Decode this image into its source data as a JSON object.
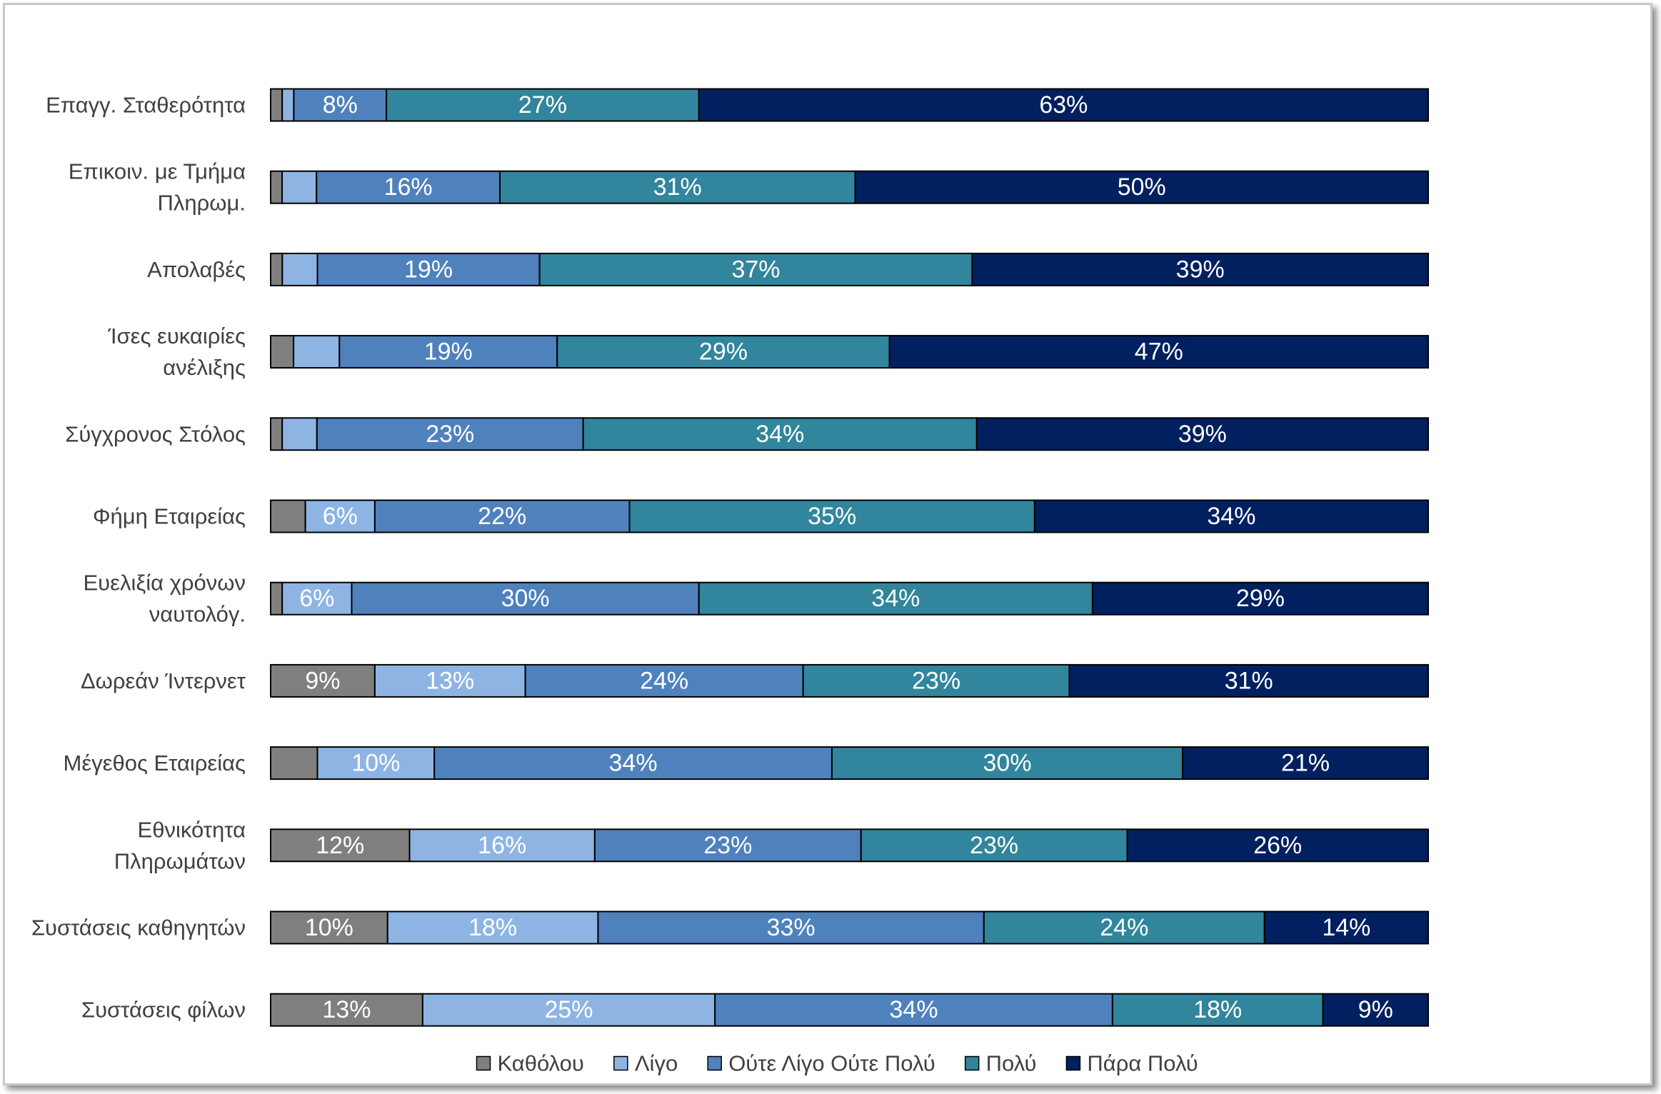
{
  "chart_data": {
    "type": "bar",
    "orientation": "horizontal",
    "stacked": "100%",
    "title": "",
    "xlabel": "",
    "ylabel": "",
    "xlim": [
      0,
      100
    ],
    "grid": false,
    "legend_position": "bottom",
    "categories": [
      "Επαγγ. Σταθερότητα",
      "Επικοιν. με Τμήμα Πληρωμ.",
      "Απολαβές",
      "Ίσες ευκαιρίες ανέλιξης",
      "Σύγχρονος Στόλος",
      "Φήμη Εταιρείας",
      "Ευελιξία χρόνων ναυτολόγ.",
      "Δωρεάν Ίντερνετ",
      "Μέγεθος Εταιρείας",
      "Εθνικότητα Πληρωμάτων",
      "Συστάσεις καθηγητών",
      "Συστάσεις φίλων"
    ],
    "category_lines": [
      [
        "Επαγγ. Σταθερότητα"
      ],
      [
        "Επικοιν. με Τμήμα",
        "Πληρωμ."
      ],
      [
        "Απολαβές"
      ],
      [
        "Ίσες ευκαιρίες",
        "ανέλιξης"
      ],
      [
        "Σύγχρονος Στόλος"
      ],
      [
        "Φήμη Εταιρείας"
      ],
      [
        "Ευελιξία χρόνων",
        "ναυτολόγ."
      ],
      [
        "Δωρεάν Ίντερνετ"
      ],
      [
        "Μέγεθος Εταιρείας"
      ],
      [
        "Εθνικότητα ",
        "Πληρωμάτων"
      ],
      [
        "Συστάσεις καθηγητών"
      ],
      [
        "Συστάσεις φίλων"
      ]
    ],
    "series": [
      {
        "name": "Καθόλου",
        "color": "#7f7f7f",
        "values": [
          1,
          1,
          1,
          2,
          1,
          3,
          1,
          9,
          4,
          12,
          10,
          13
        ]
      },
      {
        "name": "Λίγο",
        "color": "#8eb4e3",
        "values": [
          1,
          3,
          3,
          4,
          3,
          6,
          6,
          13,
          10,
          16,
          18,
          25
        ]
      },
      {
        "name": "Ούτε Λίγο Ούτε Πολύ",
        "color": "#4f81bd",
        "values": [
          8,
          16,
          19,
          19,
          23,
          22,
          30,
          24,
          34,
          23,
          33,
          34
        ]
      },
      {
        "name": "Πολύ",
        "color": "#31859c",
        "values": [
          27,
          31,
          37,
          29,
          34,
          35,
          34,
          23,
          30,
          23,
          24,
          18
        ]
      },
      {
        "name": "Πάρα Πολύ",
        "color": "#002060",
        "values": [
          63,
          50,
          39,
          47,
          39,
          34,
          29,
          31,
          21,
          26,
          14,
          9
        ]
      }
    ],
    "data_labels": [
      [
        "",
        "",
        "8%",
        "27%",
        "63%"
      ],
      [
        "",
        "",
        "16%",
        "31%",
        "50%"
      ],
      [
        "",
        "",
        "19%",
        "37%",
        "39%"
      ],
      [
        "",
        "",
        "19%",
        "29%",
        "47%"
      ],
      [
        "",
        "",
        "23%",
        "34%",
        "39%"
      ],
      [
        "",
        "6%",
        "22%",
        "35%",
        "34%"
      ],
      [
        "",
        "6%",
        "30%",
        "34%",
        "29%"
      ],
      [
        "9%",
        "13%",
        "24%",
        "23%",
        "31%"
      ],
      [
        "",
        "10%",
        "34%",
        "30%",
        "21%"
      ],
      [
        "12%",
        "16%",
        "23%",
        "23%",
        "26%"
      ],
      [
        "10%",
        "18%",
        "33%",
        "24%",
        "14%"
      ],
      [
        "13%",
        "25%",
        "34%",
        "18%",
        "9%"
      ]
    ]
  }
}
